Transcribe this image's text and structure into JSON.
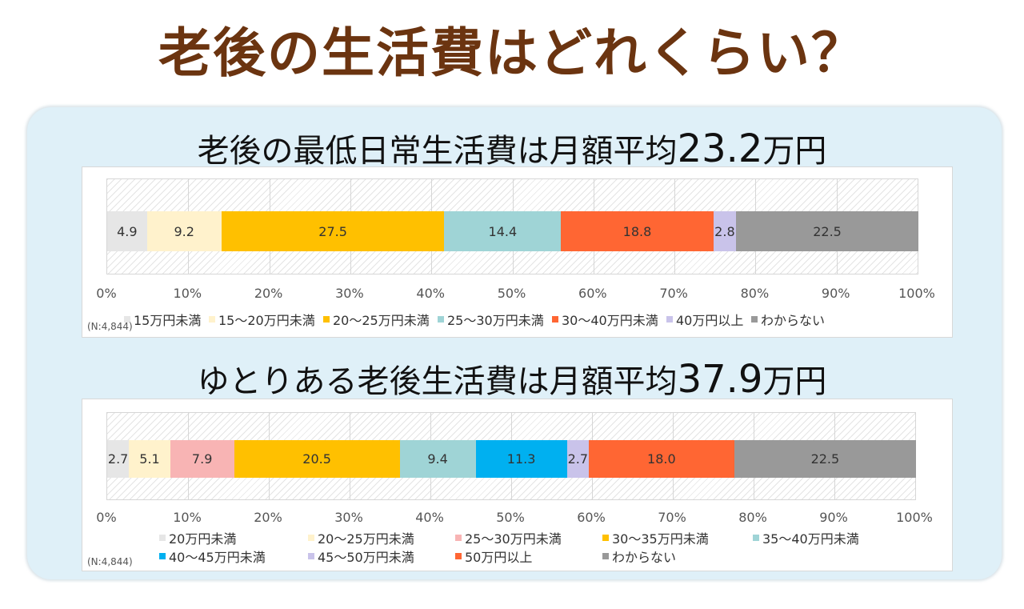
{
  "page_title": "老後の生活費はどれくらい？",
  "colors": {
    "title": "#6b3410",
    "panel": "#dff0f8"
  },
  "chart_data": [
    {
      "type": "bar",
      "orientation": "horizontal-stacked-100",
      "title_prefix": "老後の最低日常生活費は月額平均",
      "title_value": "23.2",
      "title_suffix": "万円",
      "sample_note": "(N:4,844)",
      "x_ticks": [
        "0%",
        "10%",
        "20%",
        "30%",
        "40%",
        "50%",
        "60%",
        "70%",
        "80%",
        "90%",
        "100%"
      ],
      "xlim": [
        0,
        100
      ],
      "series": [
        {
          "name": "15万円未満",
          "value": 4.9,
          "label": "4.9",
          "color": "#e6e6e6"
        },
        {
          "name": "15〜20万円未満",
          "value": 9.2,
          "label": "9.2",
          "color": "#fff2cc"
        },
        {
          "name": "20〜25万円未満",
          "value": 27.5,
          "label": "27.5",
          "color": "#ffc000"
        },
        {
          "name": "25〜30万円未満",
          "value": 14.4,
          "label": "14.4",
          "color": "#9fd4d6"
        },
        {
          "name": "30〜40万円未満",
          "value": 18.8,
          "label": "18.8",
          "color": "#ff6633"
        },
        {
          "name": "40万円以上",
          "value": 2.8,
          "label": "2.8",
          "color": "#c9c3ea"
        },
        {
          "name": "わからない",
          "value": 22.5,
          "label": "22.5",
          "color": "#999999"
        }
      ]
    },
    {
      "type": "bar",
      "orientation": "horizontal-stacked-100",
      "title_prefix": "ゆとりある老後生活費は月額平均",
      "title_value": "37.9",
      "title_suffix": "万円",
      "sample_note": "(N:4,844)",
      "x_ticks": [
        "0%",
        "10%",
        "20%",
        "30%",
        "40%",
        "50%",
        "60%",
        "70%",
        "80%",
        "90%",
        "100%"
      ],
      "xlim": [
        0,
        100
      ],
      "series": [
        {
          "name": "20万円未満",
          "value": 2.7,
          "label": "2.7",
          "color": "#e6e6e6"
        },
        {
          "name": "20〜25万円未満",
          "value": 5.1,
          "label": "5.1",
          "color": "#fff2cc"
        },
        {
          "name": "25〜30万円未満",
          "value": 7.9,
          "label": "7.9",
          "color": "#f8b4b4"
        },
        {
          "name": "30〜35万円未満",
          "value": 20.5,
          "label": "20.5",
          "color": "#ffc000"
        },
        {
          "name": "35〜40万円未満",
          "value": 9.4,
          "label": "9.4",
          "color": "#9fd4d6"
        },
        {
          "name": "40〜45万円未満",
          "value": 11.3,
          "label": "11.3",
          "color": "#00b0f0"
        },
        {
          "name": "45〜50万円未満",
          "value": 2.7,
          "label": "2.7",
          "color": "#c9c3ea"
        },
        {
          "name": "50万円以上",
          "value": 18.0,
          "label": "18.0",
          "color": "#ff6633"
        },
        {
          "name": "わからない",
          "value": 22.5,
          "label": "22.5",
          "color": "#999999"
        }
      ]
    }
  ]
}
